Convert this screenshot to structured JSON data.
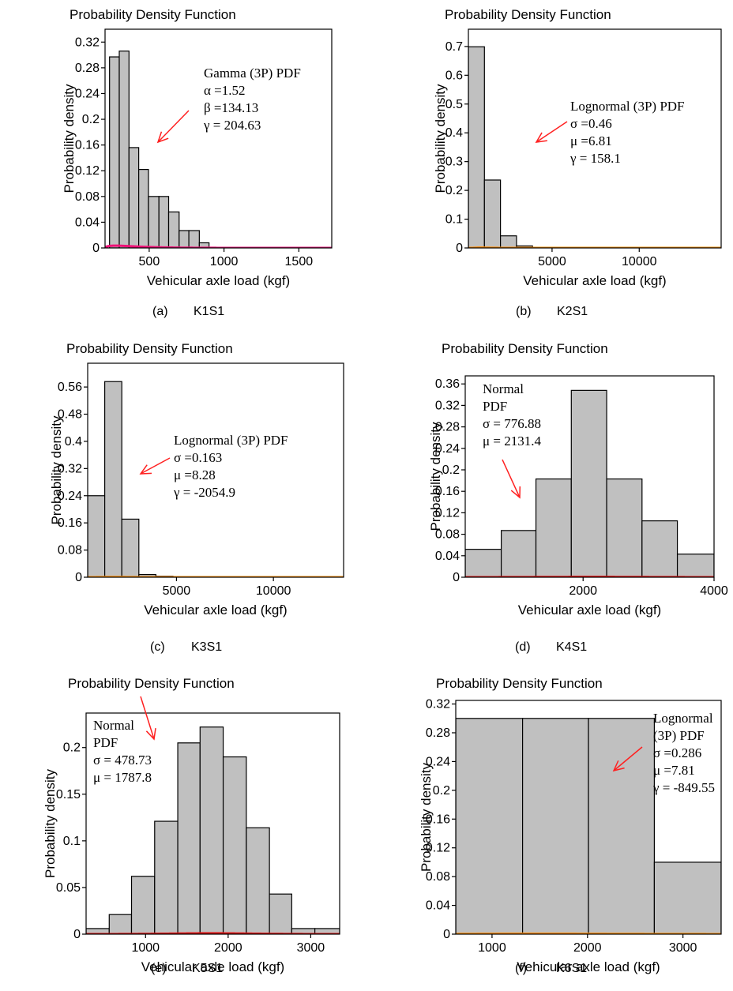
{
  "panels": [
    {
      "title": "Probability Density Function",
      "caption": {
        "letter": "(a)",
        "name": "K1S1"
      },
      "chart_data": {
        "type": "bar",
        "title": "Probability Density Function",
        "xlabel": "Vehicular axle load (kgf)",
        "ylabel": "Probability density",
        "xlim": [
          205,
          1720
        ],
        "ylim": [
          0,
          0.34
        ],
        "xticks": [
          500,
          1000,
          1500
        ],
        "xtick_labels": [
          "500",
          "1000",
          "1500"
        ],
        "yticks": [
          0,
          0.04,
          0.08,
          0.12,
          0.16,
          0.2,
          0.24,
          0.28,
          0.32
        ],
        "ytick_labels": [
          "0",
          "0.04",
          "0.08",
          "0.12",
          "0.16",
          "0.2",
          "0.24",
          "0.28",
          "0.32"
        ],
        "bins": [
          [
            235,
            300,
            0.297
          ],
          [
            300,
            365,
            0.306
          ],
          [
            365,
            430,
            0.156
          ],
          [
            430,
            495,
            0.122
          ],
          [
            495,
            565,
            0.08
          ],
          [
            565,
            630,
            0.08
          ],
          [
            630,
            700,
            0.056
          ],
          [
            700,
            765,
            0.027
          ],
          [
            765,
            835,
            0.027
          ],
          [
            835,
            900,
            0.008
          ]
        ],
        "fit": {
          "dist": "gamma3p",
          "alpha": 1.52,
          "beta": 134.13,
          "gamma": 204.63
        },
        "fit_color": "#ee1177",
        "annotation": [
          "Gamma (3P) PDF",
          "α =1.52",
          "β =134.13",
          "γ = 204.63"
        ]
      }
    },
    {
      "title": "Probability Density Function",
      "caption": {
        "letter": "(b)",
        "name": "K2S1"
      },
      "chart_data": {
        "type": "bar",
        "title": "Probability Density Function",
        "xlabel": "Vehicular axle load (kgf)",
        "ylabel": "Probability density",
        "xlim": [
          200,
          14700
        ],
        "ylim": [
          0,
          0.76
        ],
        "xticks": [
          5000,
          10000
        ],
        "xtick_labels": [
          "5000",
          "10000"
        ],
        "yticks": [
          0,
          0.1,
          0.2,
          0.3,
          0.4,
          0.5,
          0.6,
          0.7
        ],
        "ytick_labels": [
          "0",
          "0.1",
          "0.2",
          "0.3",
          "0.4",
          "0.5",
          "0.6",
          "0.7"
        ],
        "bins": [
          [
            200,
            1120,
            0.699
          ],
          [
            1120,
            2040,
            0.236
          ],
          [
            2040,
            2960,
            0.042
          ],
          [
            2960,
            3880,
            0.007
          ]
        ],
        "fit": {
          "dist": "lognormal3p",
          "sigma": 0.46,
          "mu": 6.81,
          "gamma": 158.1
        },
        "fit_color": "#ff8c00",
        "annotation": [
          "Lognormal (3P) PDF",
          "σ =0.46",
          "μ =6.81",
          "γ = 158.1"
        ]
      }
    },
    {
      "title": "Probability Density Function",
      "caption": {
        "letter": "(c)",
        "name": "K3S1"
      },
      "chart_data": {
        "type": "bar",
        "title": "Probability Density Function",
        "xlabel": "Vehicular axle load (kgf)",
        "ylabel": "Probability density",
        "xlim": [
          420,
          13620
        ],
        "ylim": [
          0,
          0.63
        ],
        "xticks": [
          5000,
          10000
        ],
        "xtick_labels": [
          "5000",
          "10000"
        ],
        "yticks": [
          0,
          0.08,
          0.16,
          0.24,
          0.32,
          0.4,
          0.48,
          0.56
        ],
        "ytick_labels": [
          "0",
          "0.08",
          "0.16",
          "0.24",
          "0.32",
          "0.4",
          "0.48",
          "0.56"
        ],
        "bins": [
          [
            420,
            1300,
            0.24
          ],
          [
            1300,
            2180,
            0.576
          ],
          [
            2180,
            3060,
            0.171
          ],
          [
            3060,
            3940,
            0.008
          ],
          [
            3940,
            4820,
            0.003
          ]
        ],
        "fit": {
          "dist": "lognormal3p",
          "sigma": 0.163,
          "mu": 8.28,
          "gamma": -2054.9
        },
        "fit_color": "#ff8c00",
        "annotation": [
          "Lognormal (3P) PDF",
          "σ =0.163",
          "μ =8.28",
          "γ = -2054.9"
        ]
      }
    },
    {
      "title": "Probability Density Function",
      "caption": {
        "letter": "(d)",
        "name": "K4S1"
      },
      "chart_data": {
        "type": "bar",
        "title": "Probability Density Function",
        "xlabel": "Vehicular axle load (kgf)",
        "ylabel": "Probability density",
        "xlim": [
          200,
          4000
        ],
        "ylim": [
          0,
          0.375
        ],
        "xticks": [
          2000,
          4000
        ],
        "xtick_labels": [
          "2000",
          "4000"
        ],
        "yticks": [
          0,
          0.04,
          0.08,
          0.12,
          0.16,
          0.2,
          0.24,
          0.28,
          0.32,
          0.36
        ],
        "ytick_labels": [
          "0",
          "0.04",
          "0.08",
          "0.12",
          "0.16",
          "0.2",
          "0.24",
          "0.28",
          "0.32",
          "0.36"
        ],
        "bins": [
          [
            200,
            750,
            0.052
          ],
          [
            750,
            1280,
            0.087
          ],
          [
            1280,
            1820,
            0.183
          ],
          [
            1820,
            2360,
            0.348
          ],
          [
            2360,
            2900,
            0.183
          ],
          [
            2900,
            3440,
            0.105
          ],
          [
            3440,
            4000,
            0.043
          ]
        ],
        "fit": {
          "dist": "normal",
          "sigma": 776.88,
          "mu": 2131.4
        },
        "fit_color": "#dd1111",
        "annotation": [
          "Normal",
          "PDF",
          "σ = 776.88",
          "μ = 2131.4"
        ]
      }
    },
    {
      "title": "Probability Density Function",
      "caption": {
        "letter": "(e)",
        "name": "K5S1"
      },
      "chart_data": {
        "type": "bar",
        "title": "Probability Density Function",
        "xlabel": "Vehicular axle load (kgf)",
        "ylabel": "Probability density",
        "xlim": [
          280,
          3350
        ],
        "ylim": [
          0,
          0.237
        ],
        "xticks": [
          1000,
          2000,
          3000
        ],
        "xtick_labels": [
          "1000",
          "2000",
          "3000"
        ],
        "yticks": [
          0,
          0.05,
          0.1,
          0.15,
          0.2
        ],
        "ytick_labels": [
          "0",
          "0.05",
          "0.1",
          "0.15",
          "0.2"
        ],
        "bins": [
          [
            280,
            560,
            0.006
          ],
          [
            560,
            830,
            0.021
          ],
          [
            830,
            1110,
            0.062
          ],
          [
            1110,
            1390,
            0.121
          ],
          [
            1390,
            1660,
            0.205
          ],
          [
            1660,
            1940,
            0.222
          ],
          [
            1940,
            2220,
            0.19
          ],
          [
            2220,
            2500,
            0.114
          ],
          [
            2500,
            2770,
            0.043
          ],
          [
            2770,
            3050,
            0.006
          ],
          [
            3050,
            3350,
            0.006
          ]
        ],
        "fit": {
          "dist": "normal",
          "sigma": 478.73,
          "mu": 1787.8
        },
        "fit_color": "#dd1111",
        "annotation": [
          "Normal",
          "PDF",
          "σ = 478.73",
          "μ = 1787.8"
        ]
      }
    },
    {
      "title": "Probability Density Function",
      "caption": {
        "letter": "(f)",
        "name": "K6S1"
      },
      "chart_data": {
        "type": "bar",
        "title": "Probability Density Function",
        "xlabel": "Vehicular axle load (kgf)",
        "ylabel": "Probability density",
        "xlim": [
          620,
          3400
        ],
        "ylim": [
          0,
          0.325
        ],
        "xticks": [
          1000,
          2000,
          3000
        ],
        "xtick_labels": [
          "1000",
          "2000",
          "3000"
        ],
        "yticks": [
          0,
          0.04,
          0.08,
          0.12,
          0.16,
          0.2,
          0.24,
          0.28,
          0.32
        ],
        "ytick_labels": [
          "0",
          "0.04",
          "0.08",
          "0.12",
          "0.16",
          "0.2",
          "0.24",
          "0.28",
          "0.32"
        ],
        "bins": [
          [
            620,
            1320,
            0.3
          ],
          [
            1320,
            2010,
            0.3
          ],
          [
            2010,
            2700,
            0.3
          ],
          [
            2700,
            3400,
            0.1
          ]
        ],
        "fit": {
          "dist": "lognormal3p",
          "sigma": 0.286,
          "mu": 7.81,
          "gamma": -849.55
        },
        "fit_color": "#ff8c00",
        "annotation": [
          "Lognormal",
          "(3P) PDF",
          "σ =0.286",
          "μ =7.81",
          "γ = -849.55"
        ]
      }
    }
  ]
}
